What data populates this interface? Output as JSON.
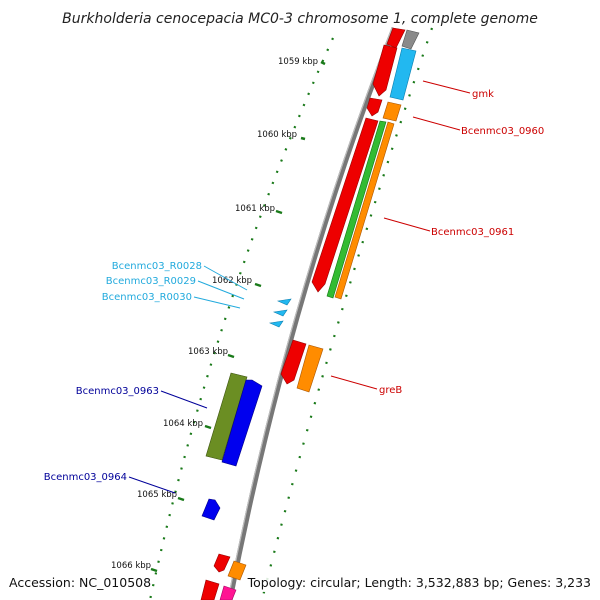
{
  "title": "Burkholderia cenocepacia MC0-3 chromosome 1, complete genome",
  "footer": {
    "accession": "Accession: NC_010508",
    "topology": "Topology: circular; Length: 3,532,883 bp; Genes: 3,233"
  },
  "ticks": [
    "1059 kbp",
    "1060 kbp",
    "1061 kbp",
    "1062 kbp",
    "1063 kbp",
    "1064 kbp",
    "1065 kbp",
    "1066 kbp"
  ],
  "labels": {
    "gmk": "gmk",
    "b0960": "Bcenmc03_0960",
    "b0961": "Bcenmc03_0961",
    "greB": "greB",
    "r0028": "Bcenmc03_R0028",
    "r0029": "Bcenmc03_R0029",
    "r0030": "Bcenmc03_R0030",
    "b0963": "Bcenmc03_0963",
    "b0964": "Bcenmc03_0964"
  },
  "colors": {
    "red": "#ee0000",
    "orange": "#ff8c00",
    "green": "#33bb33",
    "olive": "#6b8e23",
    "blue": "#0000ee",
    "cyan": "#22b8f0",
    "grey": "#808080",
    "pink": "#ff1493",
    "label_red": "#cc0000",
    "label_cyan": "#22aadd",
    "label_navy": "#000099",
    "tick_green": "#1a7a1a"
  }
}
